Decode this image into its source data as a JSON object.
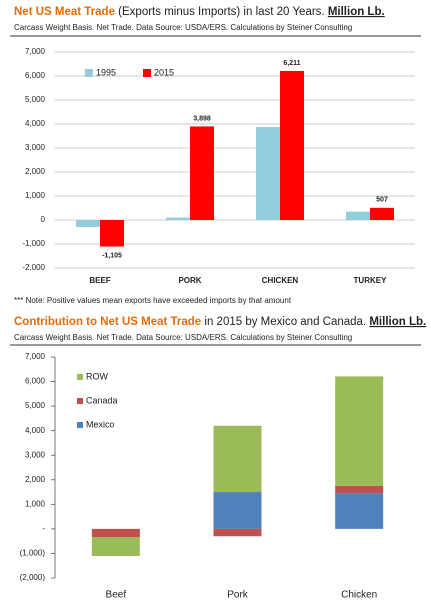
{
  "chart_data": [
    {
      "type": "bar",
      "stacked": false,
      "title_parts": [
        "Net US Meat Trade",
        " (Exports minus Imports) in last 20 Years. ",
        "Million Lb."
      ],
      "subtitle": "Carcass Weight Basis.  Net Trade.  Data Source: USDA/ERS.  Calculations by Steiner Consulting",
      "categories": [
        "BEEF",
        "PORK",
        "CHICKEN",
        "TURKEY"
      ],
      "series": [
        {
          "name": "1995",
          "color": "#92cddc",
          "values": [
            -290,
            100,
            3870,
            350
          ]
        },
        {
          "name": "2015",
          "color": "#ff0000",
          "values": [
            -1105,
            3898,
            6211,
            507
          ],
          "value_labels": [
            "-1,105",
            "3,898",
            "6,211",
            "507"
          ]
        }
      ],
      "ylim": [
        -2000,
        7000
      ],
      "yticks": [
        {
          "value": -2000,
          "label": "-2,000"
        },
        {
          "value": -1000,
          "label": "-1,000"
        },
        0,
        {
          "value": 1000,
          "label": "1,000"
        },
        {
          "value": 2000,
          "label": "2,000"
        },
        {
          "value": 3000,
          "label": "3,000"
        },
        {
          "value": 4000,
          "label": "4,000"
        },
        {
          "value": 5000,
          "label": "5,000"
        },
        {
          "value": 6000,
          "label": "6,000"
        },
        {
          "value": 7000,
          "label": "7,000"
        }
      ],
      "grid": true,
      "legend": "upper left"
    },
    {
      "type": "bar",
      "stacked": true,
      "title_parts": [
        "Contribution to Net US Meat Trade",
        " in 2015 by Mexico and Canada. ",
        "Million Lb."
      ],
      "subtitle": "Carcass Weight Basis.  Net Trade.  Data Source: USDA/ERS.  Calculations by Steiner Consulting",
      "categories": [
        "Beef",
        "Pork",
        "Chicken"
      ],
      "series": [
        {
          "name": "Mexico",
          "color": "#4f81bd",
          "values": [
            0,
            1500,
            1450
          ]
        },
        {
          "name": "Canada",
          "color": "#c0504d",
          "values": [
            -330,
            -300,
            300
          ]
        },
        {
          "name": "ROW",
          "color": "#9bbb59",
          "values": [
            -775,
            2700,
            4460
          ]
        }
      ],
      "ylim": [
        -2000,
        7000
      ],
      "yticks": [
        {
          "value": -2000,
          "label": "(2,000)"
        },
        {
          "value": -1000,
          "label": "(1,000)"
        },
        {
          "value": 0,
          "label": "-"
        },
        {
          "value": 1000,
          "label": "1,000"
        },
        {
          "value": 2000,
          "label": "2,000"
        },
        {
          "value": 3000,
          "label": "3,000"
        },
        {
          "value": 4000,
          "label": "4,000"
        },
        {
          "value": 5000,
          "label": "5,000"
        },
        {
          "value": 6000,
          "label": "6,000"
        },
        {
          "value": 7000,
          "label": "7,000"
        }
      ],
      "grid": false,
      "legend": "upper left"
    }
  ],
  "note": "*** Note: Positive values mean exports have exceeded imports by that amount"
}
